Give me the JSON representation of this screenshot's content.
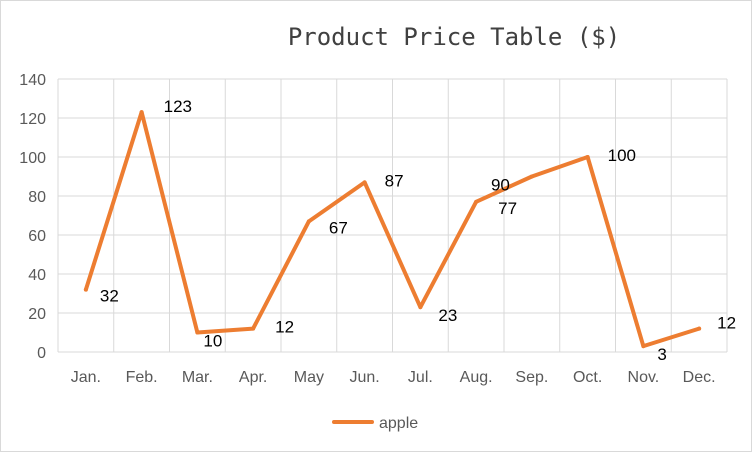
{
  "chart_data": {
    "type": "line",
    "title": "Product Price Table ($)",
    "categories": [
      "Jan.",
      "Feb.",
      "Mar.",
      "Apr.",
      "May",
      "Jun.",
      "Jul.",
      "Aug.",
      "Sep.",
      "Oct.",
      "Nov.",
      "Dec."
    ],
    "series": [
      {
        "name": "apple",
        "color": "#ED7D31",
        "values": [
          32,
          123,
          10,
          12,
          67,
          87,
          23,
          77,
          90,
          100,
          3,
          12
        ]
      }
    ],
    "ylim": [
      0,
      140
    ],
    "yticks": [
      0,
      20,
      40,
      60,
      80,
      100,
      120,
      140
    ],
    "grid": true,
    "legend_position": "bottom",
    "data_labels": true
  }
}
